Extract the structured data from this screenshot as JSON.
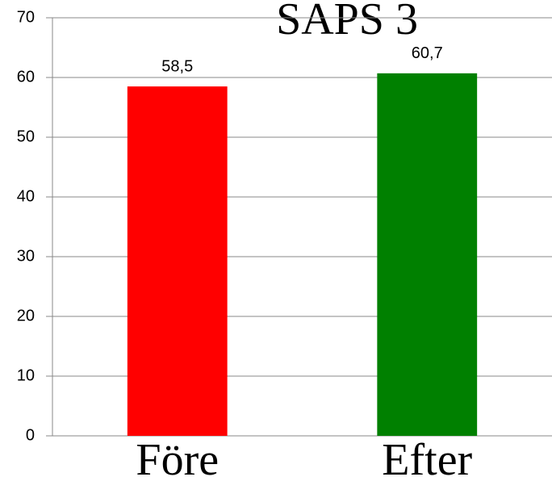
{
  "chart_data": {
    "type": "bar",
    "title": "SAPS 3",
    "categories": [
      "Före",
      "Efter"
    ],
    "values": [
      58.5,
      60.7
    ],
    "value_labels": [
      "58,5",
      "60,7"
    ],
    "colors": [
      "#ff0000",
      "#008000"
    ],
    "ylim": [
      0,
      70
    ],
    "yticks": [
      0,
      10,
      20,
      30,
      40,
      50,
      60,
      70
    ],
    "grid": true
  }
}
